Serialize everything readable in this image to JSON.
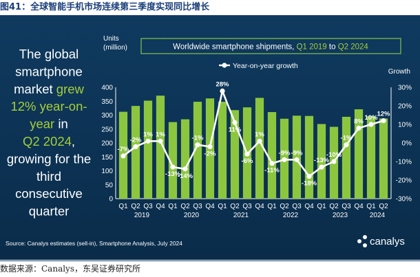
{
  "figure_title": "图41：全球智能手机市场连续第三季度实现同比增长",
  "source_note_zh": "数据来源：Canalys，东吴证券研究所",
  "panel": {
    "headline_lines": [
      {
        "parts": [
          {
            "t": "The global",
            "hl": false
          }
        ]
      },
      {
        "parts": [
          {
            "t": "smartphone",
            "hl": false
          }
        ]
      },
      {
        "parts": [
          {
            "t": "market ",
            "hl": false
          },
          {
            "t": "grew",
            "hl": true
          }
        ]
      },
      {
        "parts": [
          {
            "t": "12% year-on-",
            "hl": true
          }
        ]
      },
      {
        "parts": [
          {
            "t": "year",
            "hl": true
          },
          {
            "t": " in",
            "hl": false
          }
        ]
      },
      {
        "parts": [
          {
            "t": "Q2 2024",
            "hl": true
          },
          {
            "t": ",",
            "hl": false
          }
        ]
      },
      {
        "parts": [
          {
            "t": "growing for the",
            "hl": false
          }
        ]
      },
      {
        "parts": [
          {
            "t": "third",
            "hl": false
          }
        ]
      },
      {
        "parts": [
          {
            "t": "consecutive",
            "hl": false
          }
        ]
      },
      {
        "parts": [
          {
            "t": "quarter",
            "hl": false
          }
        ]
      }
    ],
    "source_note": "Source: Canalys estimates (sell-in), Smartphone Analysis, July 2024",
    "logo_text": "canalys",
    "colors": {
      "bar": "#8cc63f",
      "line": "#ffffff",
      "highlight": "#a6ce39",
      "text": "#ffffff"
    }
  },
  "chart_data": {
    "type": "bar",
    "title_parts": [
      {
        "t": "Worldwide smartphone shipments, ",
        "hl": false
      },
      {
        "t": "Q1 2019",
        "hl": true
      },
      {
        "t": " to ",
        "hl": false
      },
      {
        "t": "Q2 2024",
        "hl": true
      }
    ],
    "categories": [
      "Q1",
      "Q2",
      "Q3",
      "Q4",
      "Q1",
      "Q2",
      "Q3",
      "Q4",
      "Q1",
      "Q2",
      "Q3",
      "Q4",
      "Q1",
      "Q2",
      "Q3",
      "Q4",
      "Q1",
      "Q2",
      "Q3",
      "Q4",
      "Q1",
      "Q2"
    ],
    "years": [
      {
        "label": "2019",
        "start": 0,
        "end": 3
      },
      {
        "label": "2020",
        "start": 4,
        "end": 7
      },
      {
        "label": "2021",
        "start": 8,
        "end": 11
      },
      {
        "label": "2022",
        "start": 12,
        "end": 15
      },
      {
        "label": "2023",
        "start": 16,
        "end": 19
      },
      {
        "label": "2024",
        "start": 20,
        "end": 21
      }
    ],
    "ylabel": "Units\n(million)",
    "y2label": "Growth",
    "ylim": [
      0,
      400
    ],
    "yticks": [
      0,
      50,
      100,
      150,
      200,
      250,
      300,
      350,
      400
    ],
    "y2lim": [
      -30,
      30
    ],
    "y2ticks": [
      -30,
      -20,
      -10,
      0,
      10,
      20,
      30
    ],
    "series": [
      {
        "name": "",
        "kind": "bar",
        "axis": "left",
        "values": [
          312,
          333,
          352,
          370,
          275,
          285,
          348,
          360,
          348,
          318,
          328,
          362,
          311,
          287,
          298,
          297,
          268,
          258,
          294,
          321,
          296,
          288
        ]
      },
      {
        "name": "Year-on-year growth",
        "kind": "line",
        "axis": "right",
        "values": [
          -7,
          -2,
          1,
          1,
          -13,
          -14,
          -1,
          -2,
          28,
          11,
          -6,
          1,
          -11,
          -9,
          -9,
          -18,
          -13,
          -10,
          -1,
          8,
          10,
          12
        ],
        "labels": [
          "-7%",
          "-2%",
          "1%",
          "1%",
          "-13%",
          "-14%",
          "-1%",
          "-2%",
          "28%",
          "11%",
          "-6%",
          "1%",
          "-11%",
          "-9%",
          "-9%",
          "-18%",
          "-13%",
          "-10%",
          "-1%",
          "8%",
          "10%",
          "12%"
        ]
      }
    ],
    "grid": false,
    "legend": "top-center"
  }
}
